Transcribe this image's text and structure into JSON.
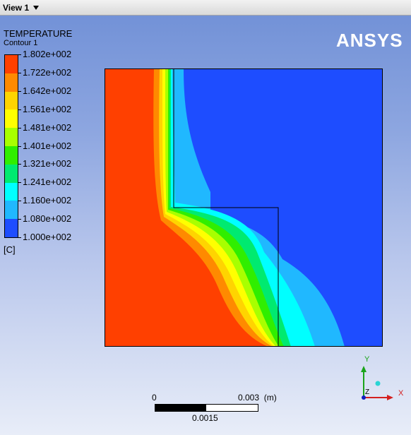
{
  "window": {
    "view_tab": "View 1"
  },
  "legend": {
    "title": "TEMPERATURE",
    "subtitle": "Contour 1",
    "unit": "[C]",
    "levels": [
      "1.802e+002",
      "1.722e+002",
      "1.642e+002",
      "1.561e+002",
      "1.481e+002",
      "1.401e+002",
      "1.321e+002",
      "1.241e+002",
      "1.160e+002",
      "1.080e+002",
      "1.000e+002"
    ],
    "colors": [
      "#ff4000",
      "#ff8a00",
      "#ffd400",
      "#ffff00",
      "#a8ff00",
      "#30ee00",
      "#00ea70",
      "#00ffff",
      "#20b8ff",
      "#1e4dff"
    ]
  },
  "brand": {
    "logo": "ANSYS"
  },
  "scale": {
    "left": "0",
    "right": "0.003",
    "unit": "(m)",
    "mid": "0.0015"
  },
  "axes": {
    "x": "X",
    "y": "Y",
    "z": "Z"
  }
}
